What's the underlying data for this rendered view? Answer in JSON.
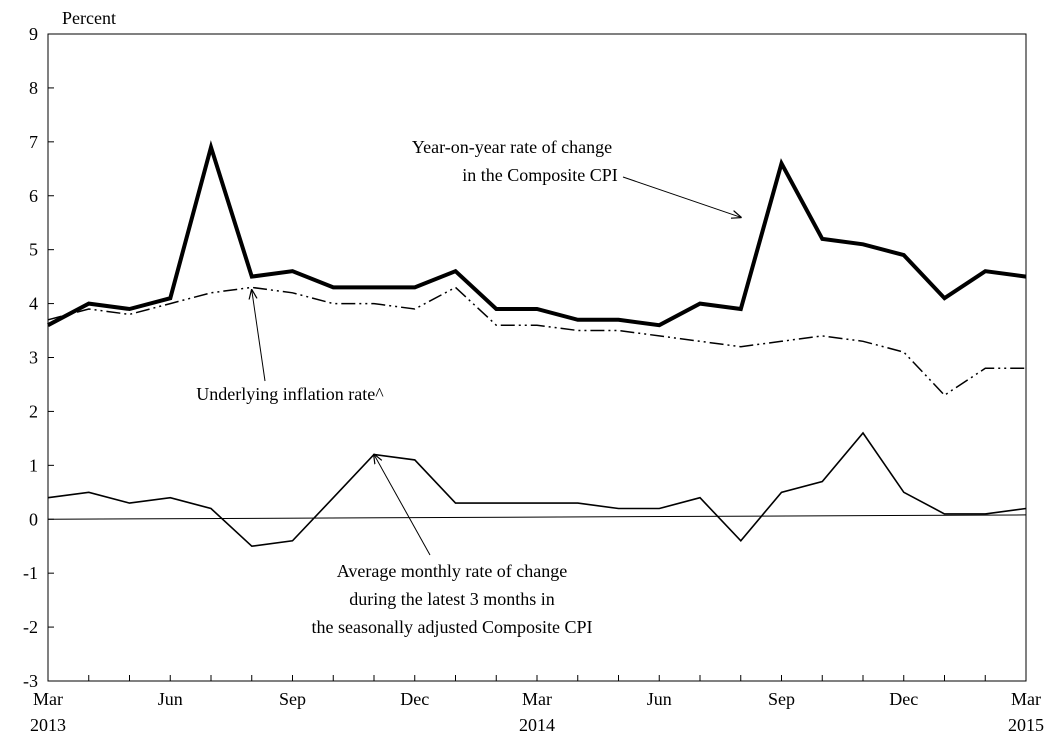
{
  "chart_data": {
    "type": "line",
    "ylabel": "Percent",
    "ylim": [
      -3,
      9
    ],
    "yticks": [
      9,
      8,
      7,
      6,
      5,
      4,
      3,
      2,
      1,
      0,
      -1,
      -2,
      -3
    ],
    "x_months": [
      "Mar 2013",
      "Apr 2013",
      "May 2013",
      "Jun 2013",
      "Jul 2013",
      "Aug 2013",
      "Sep 2013",
      "Oct 2013",
      "Nov 2013",
      "Dec 2013",
      "Jan 2014",
      "Feb 2014",
      "Mar 2014",
      "Apr 2014",
      "May 2014",
      "Jun 2014",
      "Jul 2014",
      "Aug 2014",
      "Sep 2014",
      "Oct 2014",
      "Nov 2014",
      "Dec 2014",
      "Jan 2015",
      "Feb 2015",
      "Mar 2015"
    ],
    "xtick_labels": [
      {
        "month": "Mar",
        "year": "2013"
      },
      {
        "month": "Jun",
        "year": ""
      },
      {
        "month": "Sep",
        "year": ""
      },
      {
        "month": "Dec",
        "year": ""
      },
      {
        "month": "Mar",
        "year": "2014"
      },
      {
        "month": "Jun",
        "year": ""
      },
      {
        "month": "Sep",
        "year": ""
      },
      {
        "month": "Dec",
        "year": ""
      },
      {
        "month": "Mar",
        "year": "2015"
      }
    ],
    "grid": false,
    "series": [
      {
        "key": "yoy",
        "style": "thick-solid",
        "values": [
          3.6,
          4.0,
          3.9,
          4.1,
          6.9,
          4.5,
          4.6,
          4.3,
          4.3,
          4.3,
          4.6,
          3.9,
          3.9,
          3.7,
          3.7,
          3.6,
          4.0,
          3.9,
          6.6,
          5.2,
          5.1,
          4.9,
          4.1,
          4.6,
          4.5
        ]
      },
      {
        "key": "underlying",
        "style": "dash-dot-dot",
        "values": [
          3.7,
          3.9,
          3.8,
          4.0,
          4.2,
          4.3,
          4.2,
          4.0,
          4.0,
          3.9,
          4.3,
          3.6,
          3.6,
          3.5,
          3.5,
          3.4,
          3.3,
          3.2,
          3.3,
          3.4,
          3.3,
          3.1,
          2.3,
          2.8,
          2.8
        ]
      },
      {
        "key": "monthly",
        "style": "thin-solid",
        "values": [
          0.4,
          0.5,
          0.3,
          0.4,
          0.2,
          -0.5,
          -0.4,
          0.4,
          1.2,
          1.1,
          0.3,
          0.3,
          0.3,
          0.3,
          0.2,
          0.2,
          0.4,
          -0.4,
          0.5,
          0.7,
          1.6,
          0.5,
          0.1,
          0.1,
          0.2
        ]
      }
    ],
    "reference_line": {
      "from": 0.0,
      "to": 0.08
    },
    "annotations": [
      {
        "key": "yoy",
        "lines": [
          "Year-on-year rate of change",
          "in the Composite CPI"
        ],
        "points_to_month": "Aug 2014",
        "points_to_value": 5.6
      },
      {
        "key": "underlying",
        "lines": [
          "Underlying inflation rate^"
        ],
        "points_to_month": "Aug 2013",
        "points_to_value": 4.25
      },
      {
        "key": "monthly",
        "lines": [
          "Average monthly rate of change",
          "during the latest 3 months in",
          "the seasonally adjusted Composite CPI"
        ],
        "points_to_month": "Nov 2013",
        "points_to_value": 1.2
      }
    ]
  }
}
